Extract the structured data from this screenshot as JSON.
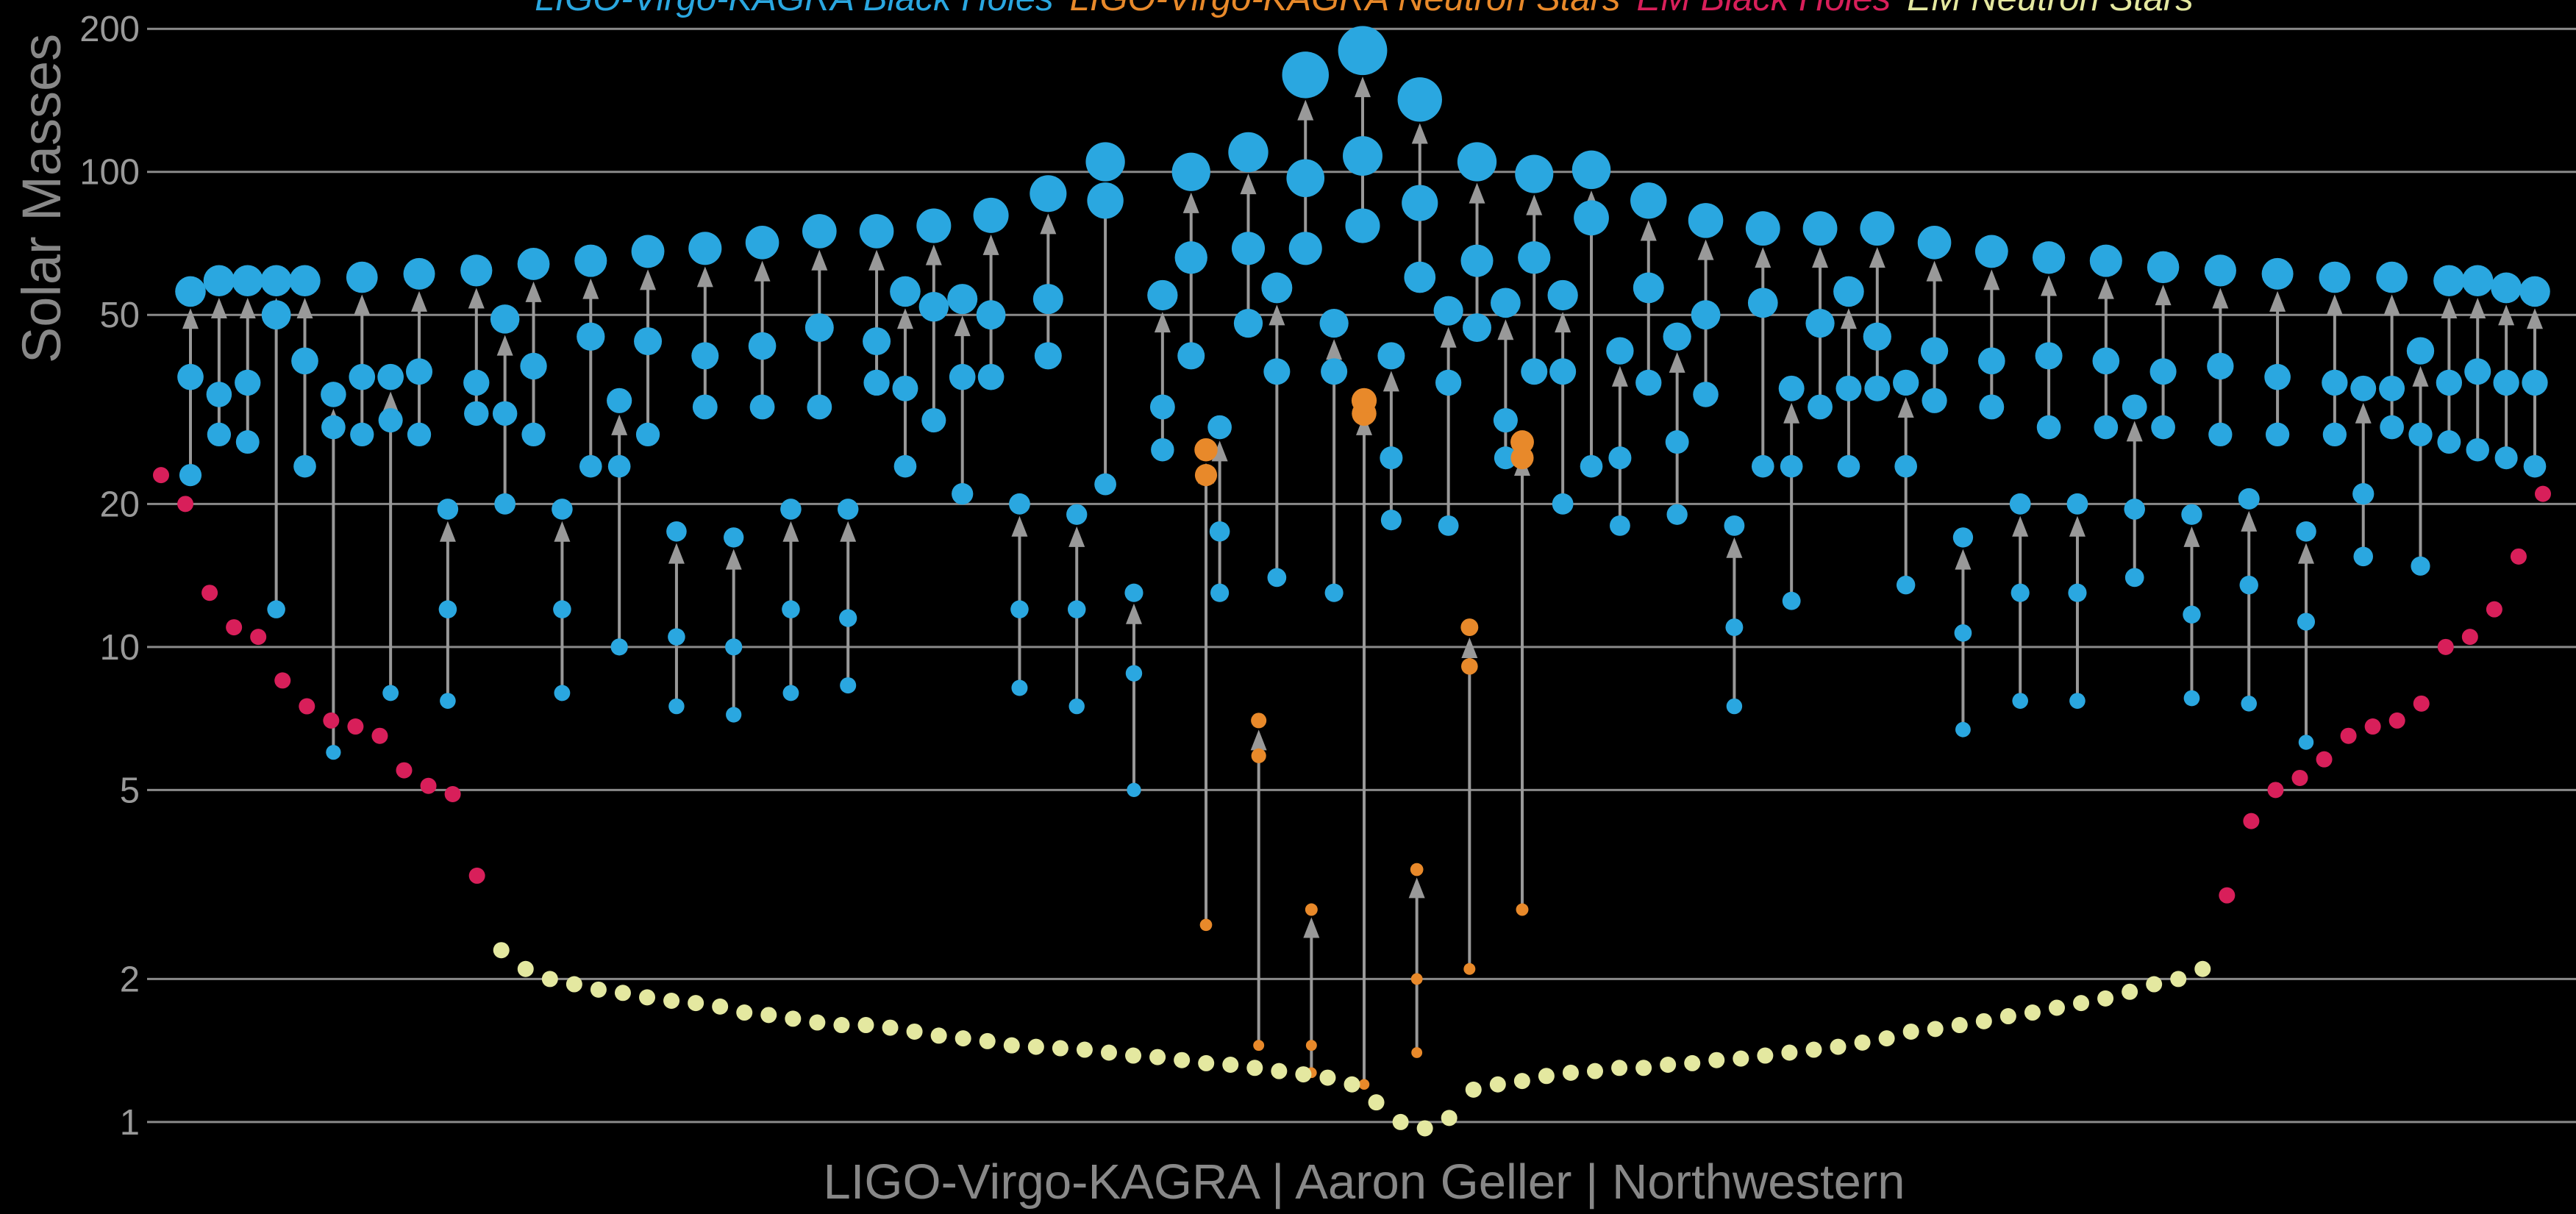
{
  "chart_data": {
    "type": "scatter",
    "ylabel": "Solar Masses",
    "caption": "LIGO-Virgo-KAGRA | Aaron Geller | Northwestern",
    "log_y": true,
    "grid": true,
    "ylim": [
      0.87,
      230
    ],
    "yticks": [
      1,
      2,
      5,
      10,
      20,
      50,
      100,
      200
    ],
    "series": [
      {
        "name": "LIGO-Virgo-KAGRA Black Holes",
        "color": "#2aa7e0",
        "m1": [
          37,
          34,
          36,
          50,
          40,
          29,
          37,
          30,
          38,
          12,
          36,
          31,
          39,
          12,
          45,
          24,
          44,
          10.5,
          41,
          10,
          43,
          12,
          47,
          11.5,
          44,
          35,
          52,
          37,
          50,
          12,
          54,
          12,
          87,
          8.8,
          32,
          66,
          17.5,
          69,
          38,
          97,
          38,
          108,
          25,
          86,
          36,
          65,
          30,
          66,
          38,
          80,
          25,
          57,
          27,
          50,
          11,
          53,
          24,
          48,
          35,
          45,
          24,
          42,
          10.7,
          40,
          13,
          41,
          13,
          40,
          19.5,
          38,
          11.7,
          39,
          13.5,
          37,
          11.3,
          36,
          21,
          35,
          28,
          36,
          38,
          36,
          36
        ],
        "m2": [
          23,
          28,
          27,
          12,
          24,
          6,
          28,
          8,
          28,
          7.7,
          31,
          20,
          28,
          8,
          24,
          10,
          28,
          7.5,
          32,
          7.2,
          32,
          8,
          32,
          8.3,
          36,
          24,
          30,
          21,
          37,
          8.2,
          41,
          7.5,
          22,
          5,
          26,
          41,
          13,
          48,
          14,
          69,
          13,
          77,
          18.5,
          60,
          18,
          47,
          25,
          38,
          20,
          24,
          18,
          36,
          19,
          34,
          7.5,
          24,
          12.5,
          32,
          24,
          35,
          13.5,
          33,
          6.7,
          32,
          7.7,
          29,
          7.7,
          29,
          14,
          29,
          7.8,
          28,
          7.6,
          28,
          6.3,
          28,
          15.5,
          29,
          14.8,
          27,
          26,
          25,
          24
        ],
        "mf": [
          56,
          59,
          59,
          59,
          59,
          34,
          60,
          37,
          61,
          19.5,
          62,
          49,
          64,
          19.5,
          65,
          33,
          68,
          17.5,
          69,
          17,
          71,
          19.5,
          75,
          19.5,
          75,
          56,
          77,
          54,
          81,
          20,
          90,
          19,
          105,
          13,
          55,
          100,
          29,
          110,
          57,
          160,
          48,
          180,
          41,
          142,
          51,
          105,
          53,
          99,
          55,
          101,
          42,
          87,
          45,
          79,
          18,
          76,
          35,
          76,
          56,
          76,
          36,
          71,
          17,
          68,
          20,
          66,
          20,
          65,
          32,
          63,
          19,
          62,
          20.5,
          61,
          17.5,
          60,
          35,
          60,
          42,
          59,
          59,
          57,
          56
        ]
      },
      {
        "name": "LIGO-Virgo-KAGRA Neutron Stars",
        "color": "#e8892a",
        "m1": [
          23,
          5.9,
          1.45,
          31,
          2.0,
          9.1,
          25
        ],
        "m2": [
          2.6,
          1.45,
          1.27,
          1.2,
          1.4,
          2.1,
          2.8
        ],
        "mf": [
          26,
          7,
          2.8,
          33,
          3.4,
          11,
          27
        ]
      },
      {
        "name": "EM Black Holes",
        "color": "#d81f5a",
        "values": [
          23,
          20,
          13,
          11,
          10.5,
          8.5,
          7.5,
          7,
          6.8,
          6.5,
          5.5,
          5.1,
          4.9,
          3.3,
          3,
          4.3,
          5,
          5.3,
          5.8,
          6.5,
          6.8,
          7,
          7.6,
          10,
          10.5,
          12,
          15.5,
          21
        ]
      },
      {
        "name": "EM Neutron Stars",
        "color": "#e4e8a0",
        "values": [
          2.3,
          2.1,
          2.0,
          1.95,
          1.9,
          1.87,
          1.83,
          1.8,
          1.78,
          1.75,
          1.7,
          1.68,
          1.65,
          1.62,
          1.6,
          1.6,
          1.58,
          1.55,
          1.52,
          1.5,
          1.48,
          1.45,
          1.44,
          1.43,
          1.42,
          1.4,
          1.38,
          1.37,
          1.35,
          1.33,
          1.32,
          1.3,
          1.28,
          1.26,
          1.24,
          1.2,
          1.1,
          1.0,
          0.97,
          1.02,
          1.17,
          1.2,
          1.22,
          1.25,
          1.27,
          1.28,
          1.3,
          1.3,
          1.32,
          1.33,
          1.35,
          1.36,
          1.38,
          1.4,
          1.42,
          1.44,
          1.47,
          1.5,
          1.55,
          1.57,
          1.6,
          1.63,
          1.67,
          1.7,
          1.74,
          1.78,
          1.82,
          1.88,
          1.95,
          2.0,
          2.1
        ]
      }
    ]
  }
}
